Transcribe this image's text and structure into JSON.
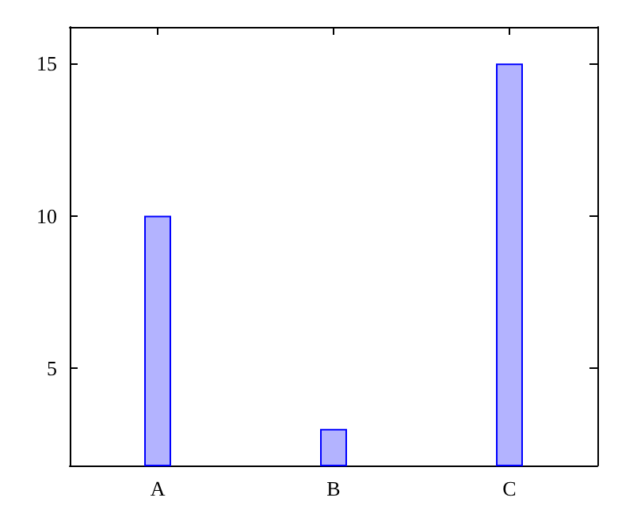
{
  "chart_data": {
    "type": "bar",
    "categories": [
      "A",
      "B",
      "C"
    ],
    "values": [
      10,
      3,
      15
    ],
    "color": "#b3b3ff",
    "ylim": [
      1.8,
      16.2
    ],
    "yticks": [
      5,
      10,
      15
    ],
    "grid": false
  }
}
